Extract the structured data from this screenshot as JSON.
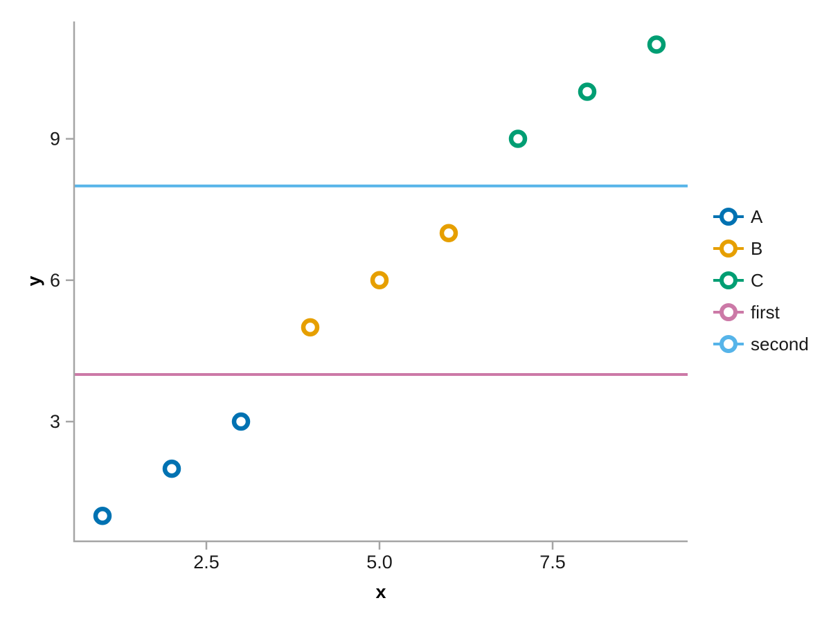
{
  "figure": {
    "background": "#ffffff"
  },
  "chart_data": {
    "type": "scatter",
    "title": "",
    "xlabel": "x",
    "ylabel": "y",
    "xlim": [
      0.59,
      9.45
    ],
    "ylim": [
      0.46,
      11.49
    ],
    "grid": false,
    "legend_position": "right",
    "x_ticks": {
      "values": [
        2.5,
        5.0,
        7.5
      ],
      "labels": [
        "2.5",
        "5.0",
        "7.5"
      ]
    },
    "y_ticks": {
      "values": [
        3,
        6,
        9
      ],
      "labels": [
        "3",
        "6",
        "9"
      ]
    },
    "series": [
      {
        "name": "A",
        "kind": "scatter",
        "color": "#0072B2",
        "x": [
          1,
          2,
          3
        ],
        "y": [
          1,
          2,
          3
        ]
      },
      {
        "name": "B",
        "kind": "scatter",
        "color": "#E69F00",
        "x": [
          4,
          5,
          6
        ],
        "y": [
          5,
          6,
          7
        ]
      },
      {
        "name": "C",
        "kind": "scatter",
        "color": "#009E73",
        "x": [
          7,
          8,
          9
        ],
        "y": [
          9,
          10,
          11
        ]
      },
      {
        "name": "first",
        "kind": "hline",
        "color": "#CC79A7",
        "y": 4
      },
      {
        "name": "second",
        "kind": "hline",
        "color": "#56B4E9",
        "y": 8
      }
    ],
    "legend_entries": [
      "A",
      "B",
      "C",
      "first",
      "second"
    ],
    "style": {
      "spine_color": "#a5a5a5",
      "tick_color": "#a5a5a5",
      "tick_label_color": "#1a1a1a",
      "axis_label_color": "#000000",
      "marker": "open-circle",
      "marker_fill": "#ffffff"
    }
  }
}
